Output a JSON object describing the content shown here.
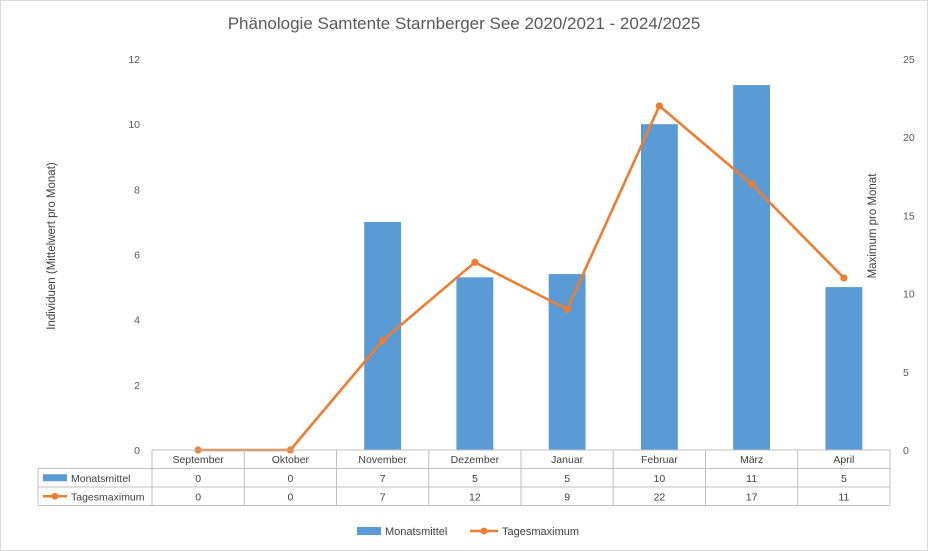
{
  "chart_data": {
    "type": "bar+line",
    "title": "Phänologie Samtente Starnberger See 2020/2021 - 2024/2025",
    "categories": [
      "September",
      "Oktober",
      "November",
      "Dezember",
      "Januar",
      "Februar",
      "März",
      "April"
    ],
    "ylabel_left": "Individuen (Mittelwert pro Monat)",
    "ylabel_right": "Maximum pro Monat",
    "ylim_left": [
      0,
      12
    ],
    "yticks_left": [
      "0",
      "2",
      "4",
      "6",
      "8",
      "10",
      "12"
    ],
    "ylim_right": [
      0,
      25
    ],
    "yticks_right": [
      "0",
      "5",
      "10",
      "15",
      "20",
      "25"
    ],
    "grid": false,
    "legend_position": "bottom",
    "series": [
      {
        "name": "Monatsmittel",
        "kind": "bar",
        "axis": "left",
        "color": "#5b9bd5",
        "values": [
          0,
          0,
          7,
          5.3,
          5.4,
          10,
          11.2,
          5
        ],
        "table_values": [
          "0",
          "0",
          "7",
          "5",
          "5",
          "10",
          "11",
          "5"
        ]
      },
      {
        "name": "Tagesmaximum",
        "kind": "line",
        "axis": "right",
        "color": "#ed7d31",
        "values": [
          0,
          0,
          7,
          12,
          9,
          22,
          17,
          11
        ],
        "table_values": [
          "0",
          "0",
          "7",
          "12",
          "9",
          "22",
          "17",
          "11"
        ]
      }
    ]
  }
}
